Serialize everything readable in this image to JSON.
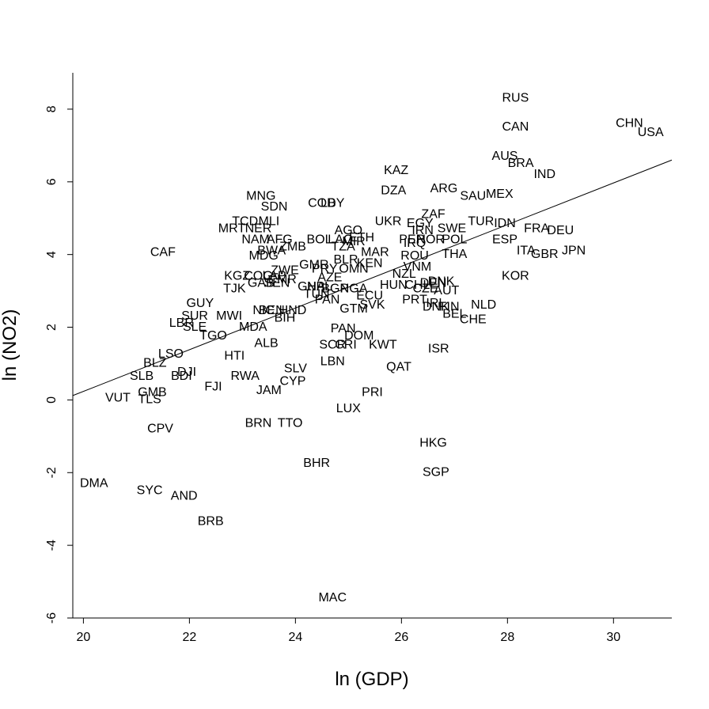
{
  "chart_data": {
    "type": "scatter",
    "title": "",
    "xlabel": "ln (GDP)",
    "ylabel": "ln (NO2)",
    "xlim": [
      19.8,
      31.1
    ],
    "ylim": [
      -6.0,
      9.0
    ],
    "x_ticks": [
      20,
      22,
      24,
      26,
      28,
      30
    ],
    "y_ticks": [
      -6,
      -4,
      -2,
      0,
      2,
      4,
      6,
      8
    ],
    "grid": false,
    "legend": "none",
    "marker": "text-label",
    "regression_line": {
      "x": [
        19.8,
        31.1
      ],
      "y": [
        0.12,
        6.6
      ]
    },
    "points": [
      {
        "label": "RUS",
        "x": 28.15,
        "y": 8.3
      },
      {
        "label": "CAN",
        "x": 28.15,
        "y": 7.5
      },
      {
        "label": "CHN",
        "x": 30.3,
        "y": 7.6
      },
      {
        "label": "USA",
        "x": 30.7,
        "y": 7.35
      },
      {
        "label": "AUS",
        "x": 27.95,
        "y": 6.7
      },
      {
        "label": "BRA",
        "x": 28.25,
        "y": 6.5
      },
      {
        "label": "IND",
        "x": 28.7,
        "y": 6.2
      },
      {
        "label": "KAZ",
        "x": 25.9,
        "y": 6.3
      },
      {
        "label": "DZA",
        "x": 25.85,
        "y": 5.75
      },
      {
        "label": "ARG",
        "x": 26.8,
        "y": 5.8
      },
      {
        "label": "SAU",
        "x": 27.35,
        "y": 5.6
      },
      {
        "label": "MEX",
        "x": 27.85,
        "y": 5.65
      },
      {
        "label": "MNG",
        "x": 23.35,
        "y": 5.6
      },
      {
        "label": "SDN",
        "x": 23.6,
        "y": 5.3
      },
      {
        "label": "COD",
        "x": 24.5,
        "y": 5.4
      },
      {
        "label": "LBY",
        "x": 24.7,
        "y": 5.4
      },
      {
        "label": "TCD",
        "x": 23.05,
        "y": 4.9
      },
      {
        "label": "MLI",
        "x": 23.5,
        "y": 4.9
      },
      {
        "label": "MRT",
        "x": 22.8,
        "y": 4.7
      },
      {
        "label": "NER",
        "x": 23.3,
        "y": 4.7
      },
      {
        "label": "UKR",
        "x": 25.75,
        "y": 4.9
      },
      {
        "label": "EGY",
        "x": 26.35,
        "y": 4.85
      },
      {
        "label": "ZAF",
        "x": 26.6,
        "y": 5.1
      },
      {
        "label": "IRN",
        "x": 26.4,
        "y": 4.65
      },
      {
        "label": "SWE",
        "x": 26.95,
        "y": 4.7
      },
      {
        "label": "TUR",
        "x": 27.5,
        "y": 4.9
      },
      {
        "label": "IDN",
        "x": 27.95,
        "y": 4.85
      },
      {
        "label": "FRA",
        "x": 28.55,
        "y": 4.7
      },
      {
        "label": "DEU",
        "x": 29.0,
        "y": 4.65
      },
      {
        "label": "AGO",
        "x": 25.0,
        "y": 4.65
      },
      {
        "label": "ETH",
        "x": 25.25,
        "y": 4.45
      },
      {
        "label": "AFG",
        "x": 23.7,
        "y": 4.4
      },
      {
        "label": "NAM",
        "x": 23.25,
        "y": 4.4
      },
      {
        "label": "BOL",
        "x": 24.45,
        "y": 4.4
      },
      {
        "label": "LAO",
        "x": 24.85,
        "y": 4.4
      },
      {
        "label": "MIR",
        "x": 25.1,
        "y": 4.35
      },
      {
        "label": "PER",
        "x": 26.2,
        "y": 4.4
      },
      {
        "label": "NOR",
        "x": 26.55,
        "y": 4.4
      },
      {
        "label": "POL",
        "x": 27.0,
        "y": 4.4
      },
      {
        "label": "IRQ",
        "x": 26.25,
        "y": 4.3
      },
      {
        "label": "ESP",
        "x": 27.95,
        "y": 4.4
      },
      {
        "label": "ITA",
        "x": 28.35,
        "y": 4.1
      },
      {
        "label": "GBR",
        "x": 28.7,
        "y": 4.0
      },
      {
        "label": "JPN",
        "x": 29.25,
        "y": 4.1
      },
      {
        "label": "BWA",
        "x": 23.55,
        "y": 4.1
      },
      {
        "label": "ZMB",
        "x": 23.95,
        "y": 4.2
      },
      {
        "label": "TZA",
        "x": 24.9,
        "y": 4.2
      },
      {
        "label": "MDG",
        "x": 23.4,
        "y": 3.95
      },
      {
        "label": "THA",
        "x": 27.0,
        "y": 4.0
      },
      {
        "label": "CAF",
        "x": 21.5,
        "y": 4.05
      },
      {
        "label": "MAR",
        "x": 25.5,
        "y": 4.05
      },
      {
        "label": "ROU",
        "x": 26.25,
        "y": 3.95
      },
      {
        "label": "BLR",
        "x": 24.95,
        "y": 3.85
      },
      {
        "label": "KEN",
        "x": 25.4,
        "y": 3.75
      },
      {
        "label": "GMR",
        "x": 24.35,
        "y": 3.7
      },
      {
        "label": "PRY",
        "x": 24.55,
        "y": 3.6
      },
      {
        "label": "OMN",
        "x": 25.1,
        "y": 3.6
      },
      {
        "label": "VNM",
        "x": 26.3,
        "y": 3.65
      },
      {
        "label": "ZWE",
        "x": 23.8,
        "y": 3.55
      },
      {
        "label": "NZL",
        "x": 26.05,
        "y": 3.45
      },
      {
        "label": "KGZ",
        "x": 22.9,
        "y": 3.4
      },
      {
        "label": "COG",
        "x": 23.3,
        "y": 3.4
      },
      {
        "label": "LAP",
        "x": 23.6,
        "y": 3.4
      },
      {
        "label": "AZE",
        "x": 24.65,
        "y": 3.35
      },
      {
        "label": "KOR",
        "x": 28.15,
        "y": 3.4
      },
      {
        "label": "GAB",
        "x": 23.35,
        "y": 3.2
      },
      {
        "label": "CMR",
        "x": 23.75,
        "y": 3.3
      },
      {
        "label": "SEN",
        "x": 23.65,
        "y": 3.2
      },
      {
        "label": "HUN",
        "x": 25.85,
        "y": 3.15
      },
      {
        "label": "CHL",
        "x": 26.3,
        "y": 3.15
      },
      {
        "label": "DEN",
        "x": 26.6,
        "y": 3.2
      },
      {
        "label": "DNK",
        "x": 26.75,
        "y": 3.25
      },
      {
        "label": "TJK",
        "x": 22.85,
        "y": 3.05
      },
      {
        "label": "GHA",
        "x": 24.3,
        "y": 3.1
      },
      {
        "label": "NPL",
        "x": 24.45,
        "y": 3.1
      },
      {
        "label": "BGR",
        "x": 24.75,
        "y": 3.05
      },
      {
        "label": "NGA",
        "x": 25.1,
        "y": 3.05
      },
      {
        "label": "CZE",
        "x": 26.45,
        "y": 3.05
      },
      {
        "label": "AUT",
        "x": 26.85,
        "y": 3.0
      },
      {
        "label": "TUN",
        "x": 24.4,
        "y": 2.9
      },
      {
        "label": "ECU",
        "x": 25.4,
        "y": 2.85
      },
      {
        "label": "PRT",
        "x": 26.25,
        "y": 2.75
      },
      {
        "label": "GUY",
        "x": 22.2,
        "y": 2.65
      },
      {
        "label": "PAN2",
        "x": 24.6,
        "y": 2.75
      },
      {
        "label": "NIC",
        "x": 23.4,
        "y": 2.45
      },
      {
        "label": "BEN",
        "x": 23.55,
        "y": 2.45
      },
      {
        "label": "HND",
        "x": 23.95,
        "y": 2.45
      },
      {
        "label": "GTM",
        "x": 25.1,
        "y": 2.5
      },
      {
        "label": "SVK",
        "x": 25.45,
        "y": 2.6
      },
      {
        "label": "NLD",
        "x": 27.55,
        "y": 2.6
      },
      {
        "label": "DNK2",
        "x": 26.65,
        "y": 2.55
      },
      {
        "label": "IRL",
        "x": 26.65,
        "y": 2.65
      },
      {
        "label": "FIN",
        "x": 26.9,
        "y": 2.55
      },
      {
        "label": "BEL",
        "x": 27.0,
        "y": 2.35
      },
      {
        "label": "CHE",
        "x": 27.35,
        "y": 2.2
      },
      {
        "label": "SUR",
        "x": 22.1,
        "y": 2.3
      },
      {
        "label": "MWI",
        "x": 22.75,
        "y": 2.3
      },
      {
        "label": "BIH",
        "x": 23.8,
        "y": 2.25
      },
      {
        "label": "LBR",
        "x": 21.85,
        "y": 2.1
      },
      {
        "label": "SLE",
        "x": 22.1,
        "y": 2.0
      },
      {
        "label": "MDA",
        "x": 23.2,
        "y": 2.0
      },
      {
        "label": "TGO",
        "x": 22.45,
        "y": 1.75
      },
      {
        "label": "PAN",
        "x": 24.9,
        "y": 1.95
      },
      {
        "label": "DOM",
        "x": 25.2,
        "y": 1.75
      },
      {
        "label": "ALB",
        "x": 23.45,
        "y": 1.55
      },
      {
        "label": "SCR",
        "x": 24.7,
        "y": 1.5
      },
      {
        "label": "CRI",
        "x": 24.95,
        "y": 1.5
      },
      {
        "label": "KWT",
        "x": 25.65,
        "y": 1.5
      },
      {
        "label": "ISR",
        "x": 26.7,
        "y": 1.4
      },
      {
        "label": "LSO",
        "x": 21.65,
        "y": 1.25
      },
      {
        "label": "HTI",
        "x": 22.85,
        "y": 1.2
      },
      {
        "label": "LBN",
        "x": 24.7,
        "y": 1.05
      },
      {
        "label": "BLZ",
        "x": 21.35,
        "y": 1.0
      },
      {
        "label": "QAT",
        "x": 25.95,
        "y": 0.9
      },
      {
        "label": "SLV",
        "x": 24.0,
        "y": 0.85
      },
      {
        "label": "DJI",
        "x": 21.95,
        "y": 0.75
      },
      {
        "label": "SLB",
        "x": 21.1,
        "y": 0.65
      },
      {
        "label": "BDI",
        "x": 21.85,
        "y": 0.65
      },
      {
        "label": "RWA",
        "x": 23.05,
        "y": 0.65
      },
      {
        "label": "CYP",
        "x": 23.95,
        "y": 0.5
      },
      {
        "label": "FJI",
        "x": 22.45,
        "y": 0.35
      },
      {
        "label": "JAM",
        "x": 23.5,
        "y": 0.25
      },
      {
        "label": "GMB",
        "x": 21.3,
        "y": 0.2
      },
      {
        "label": "PRI",
        "x": 25.45,
        "y": 0.2
      },
      {
        "label": "VUT",
        "x": 20.65,
        "y": 0.05
      },
      {
        "label": "TLS",
        "x": 21.25,
        "y": 0.0
      },
      {
        "label": "LUX",
        "x": 25.0,
        "y": -0.25
      },
      {
        "label": "BRN",
        "x": 23.3,
        "y": -0.65
      },
      {
        "label": "TTO",
        "x": 23.9,
        "y": -0.65
      },
      {
        "label": "CPV",
        "x": 21.45,
        "y": -0.8
      },
      {
        "label": "HKG",
        "x": 26.6,
        "y": -1.2
      },
      {
        "label": "BHR",
        "x": 24.4,
        "y": -1.75
      },
      {
        "label": "SGP",
        "x": 26.65,
        "y": -2.0
      },
      {
        "label": "DMA",
        "x": 20.2,
        "y": -2.3
      },
      {
        "label": "SYC",
        "x": 21.25,
        "y": -2.5
      },
      {
        "label": "AND",
        "x": 21.9,
        "y": -2.65
      },
      {
        "label": "BRB",
        "x": 22.4,
        "y": -3.35
      },
      {
        "label": "MAC",
        "x": 24.7,
        "y": -5.45
      }
    ]
  }
}
